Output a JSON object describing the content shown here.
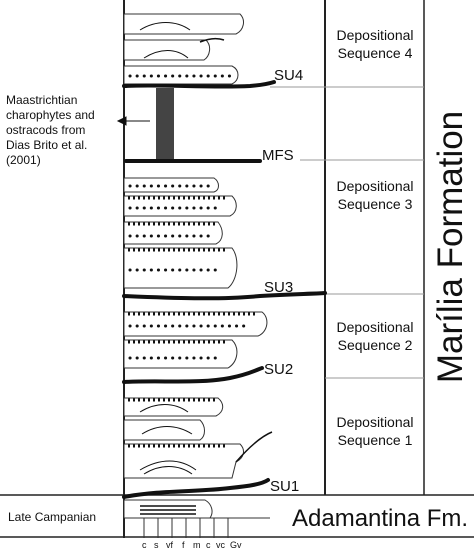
{
  "labels": {
    "note": [
      "Maastrichtian",
      "charophytes and",
      "ostracods from",
      "Dias Brito et al.",
      "(2001)"
    ],
    "late_campanian": "Late Campanian",
    "adamantina": "Adamantina Fm.",
    "formation": "Marília Formation",
    "surfaces": {
      "su4": "SU4",
      "mfs": "MFS",
      "su3": "SU3",
      "su2": "SU2",
      "su1": "SU1"
    },
    "sequences": {
      "seq4": [
        "Depositional",
        "Sequence 4"
      ],
      "seq3": [
        "Depositional",
        "Sequence 3"
      ],
      "seq2": [
        "Depositional",
        "Sequence 2"
      ],
      "seq1": [
        "Depositional",
        "Sequence 1"
      ]
    },
    "grain_sizes": [
      "c",
      "s",
      "vf",
      "f",
      "m",
      "c",
      "vc",
      "Gv"
    ]
  },
  "colors": {
    "ink": "#111111",
    "line": "#222222",
    "grid": "#999999",
    "fossil_bar": "#444444"
  }
}
